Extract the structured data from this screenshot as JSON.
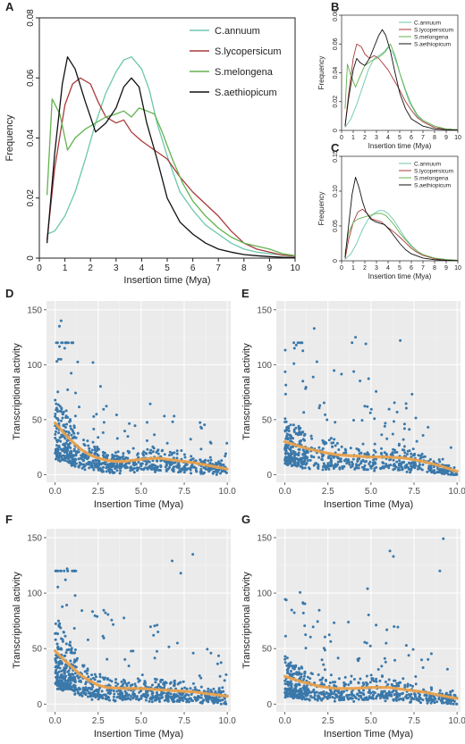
{
  "colors": {
    "C.annuum": "#6cc7ad",
    "S.lycopersicum": "#a83a3a",
    "S.melongena": "#63b24f",
    "S.aethiopicum": "#111111",
    "points": "#3a78aa",
    "trend": "#e8a04c",
    "panel_bg": "#ebebeb"
  },
  "chart_data": [
    {
      "panel": "A",
      "type": "line",
      "xlabel": "Insertion time (Mya)",
      "ylabel": "Frequency",
      "xlim": [
        0,
        10
      ],
      "ylim": [
        0,
        0.08
      ],
      "xticks": [
        0,
        1,
        2,
        3,
        4,
        5,
        6,
        7,
        8,
        9,
        10
      ],
      "yticks": [
        0,
        0.02,
        0.04,
        0.06,
        0.08
      ],
      "ytick_labels": [
        "0",
        "0.02",
        "0.04",
        "0.06",
        "0.08"
      ],
      "legend": "top-right",
      "series": [
        {
          "name": "C.annuum",
          "x": [
            0.3,
            0.6,
            1,
            1.4,
            1.8,
            2.2,
            2.6,
            3,
            3.3,
            3.6,
            4,
            4.3,
            4.6,
            5,
            5.5,
            6,
            6.5,
            7,
            7.5,
            8,
            8.5,
            9,
            9.5,
            10
          ],
          "values": [
            0.008,
            0.009,
            0.014,
            0.022,
            0.033,
            0.045,
            0.055,
            0.062,
            0.066,
            0.067,
            0.063,
            0.056,
            0.045,
            0.034,
            0.022,
            0.016,
            0.011,
            0.008,
            0.005,
            0.003,
            0.002,
            0.0015,
            0.001,
            0.0008
          ]
        },
        {
          "name": "S.lycopersicum",
          "x": [
            0.3,
            0.6,
            1,
            1.3,
            1.6,
            2,
            2.3,
            2.6,
            3,
            3.3,
            3.6,
            4,
            4.5,
            5,
            5.5,
            6,
            6.5,
            7,
            7.5,
            8,
            8.5,
            9,
            9.5,
            10
          ],
          "values": [
            0.006,
            0.03,
            0.051,
            0.058,
            0.06,
            0.058,
            0.052,
            0.047,
            0.045,
            0.046,
            0.042,
            0.039,
            0.036,
            0.033,
            0.027,
            0.022,
            0.018,
            0.014,
            0.009,
            0.005,
            0.003,
            0.002,
            0.001,
            0.0007
          ]
        },
        {
          "name": "S.melongena",
          "x": [
            0.3,
            0.5,
            0.8,
            1.1,
            1.4,
            1.8,
            2.2,
            2.6,
            3,
            3.3,
            3.6,
            3.9,
            4.2,
            4.5,
            4.8,
            5.2,
            5.6,
            6,
            6.5,
            7,
            7.5,
            8,
            8.5,
            9,
            9.5,
            10
          ],
          "values": [
            0.021,
            0.053,
            0.048,
            0.036,
            0.04,
            0.043,
            0.045,
            0.047,
            0.048,
            0.049,
            0.047,
            0.05,
            0.049,
            0.048,
            0.042,
            0.033,
            0.025,
            0.019,
            0.014,
            0.01,
            0.007,
            0.005,
            0.004,
            0.003,
            0.0015,
            0.0008
          ]
        },
        {
          "name": "S.aethiopicum",
          "x": [
            0.3,
            0.6,
            0.9,
            1.1,
            1.4,
            1.8,
            2.2,
            2.6,
            3,
            3.3,
            3.6,
            3.9,
            4.2,
            4.6,
            5,
            5.5,
            6,
            6.5,
            7,
            7.5,
            8,
            8.5,
            9,
            9.5,
            10
          ],
          "values": [
            0.005,
            0.035,
            0.058,
            0.067,
            0.063,
            0.052,
            0.042,
            0.045,
            0.05,
            0.057,
            0.06,
            0.057,
            0.045,
            0.033,
            0.02,
            0.012,
            0.008,
            0.005,
            0.003,
            0.002,
            0.0012,
            0.0008,
            0.0005,
            0.0003,
            0.0002
          ]
        }
      ]
    },
    {
      "panel": "B",
      "type": "line",
      "xlabel": "Insertion time (Mya)",
      "ylabel": "Frequency",
      "xlim": [
        0,
        10
      ],
      "ylim": [
        0,
        0.08
      ],
      "xticks": [
        0,
        1,
        2,
        3,
        4,
        5,
        6,
        7,
        8,
        9,
        10
      ],
      "yticks": [
        0,
        0.02,
        0.04,
        0.06,
        0.08
      ],
      "ytick_labels": [
        "0",
        "0.02",
        "0.04",
        "0.06",
        "0.08"
      ],
      "legend": "top-right",
      "series": [
        {
          "name": "C.annuum",
          "x": [
            0.3,
            0.8,
            1.3,
            1.8,
            2.3,
            2.8,
            3.2,
            3.6,
            4,
            4.4,
            4.8,
            5.3,
            5.8,
            6.5,
            7,
            8,
            9,
            10
          ],
          "values": [
            0.002,
            0.008,
            0.018,
            0.03,
            0.042,
            0.05,
            0.052,
            0.054,
            0.058,
            0.054,
            0.045,
            0.032,
            0.02,
            0.01,
            0.006,
            0.002,
            0.001,
            0.0005
          ]
        },
        {
          "name": "S.lycopersicum",
          "x": [
            0.3,
            0.6,
            1,
            1.3,
            1.7,
            2,
            2.4,
            2.8,
            3.2,
            3.6,
            4,
            4.5,
            5,
            5.5,
            6,
            6.5,
            7,
            8,
            9,
            10
          ],
          "values": [
            0.003,
            0.025,
            0.05,
            0.06,
            0.058,
            0.053,
            0.05,
            0.052,
            0.05,
            0.046,
            0.042,
            0.035,
            0.028,
            0.02,
            0.014,
            0.009,
            0.006,
            0.002,
            0.001,
            0.0005
          ]
        },
        {
          "name": "S.melongena",
          "x": [
            0.3,
            0.5,
            0.8,
            1.2,
            1.6,
            2,
            2.5,
            3,
            3.4,
            3.8,
            4.2,
            4.6,
            5,
            5.5,
            6,
            6.5,
            7,
            8,
            9,
            10
          ],
          "values": [
            0.015,
            0.046,
            0.038,
            0.03,
            0.038,
            0.045,
            0.048,
            0.05,
            0.052,
            0.055,
            0.06,
            0.052,
            0.04,
            0.028,
            0.018,
            0.011,
            0.007,
            0.003,
            0.001,
            0.0005
          ]
        },
        {
          "name": "S.aethiopicum",
          "x": [
            0.3,
            0.6,
            1,
            1.3,
            1.6,
            2,
            2.4,
            2.8,
            3.2,
            3.5,
            3.8,
            4.2,
            4.6,
            5,
            5.5,
            6,
            7,
            8,
            9,
            10
          ],
          "values": [
            0.003,
            0.022,
            0.042,
            0.05,
            0.047,
            0.045,
            0.05,
            0.058,
            0.066,
            0.07,
            0.066,
            0.055,
            0.04,
            0.026,
            0.015,
            0.008,
            0.003,
            0.001,
            0.0005,
            0.0002
          ]
        }
      ]
    },
    {
      "panel": "C",
      "type": "line",
      "xlabel": "Insertion time (Mya)",
      "ylabel": "Frequency",
      "xlim": [
        0,
        10
      ],
      "ylim": [
        0,
        0.15
      ],
      "xticks": [
        0,
        1,
        2,
        3,
        4,
        5,
        6,
        7,
        8,
        9,
        10
      ],
      "yticks": [
        0,
        0.05,
        0.1,
        0.15
      ],
      "ytick_labels": [
        "0",
        "0.05",
        "0.10",
        "0.15"
      ],
      "legend": "top-right",
      "series": [
        {
          "name": "C.annuum",
          "x": [
            0.3,
            0.8,
            1.3,
            1.8,
            2.3,
            2.8,
            3.2,
            3.6,
            4,
            4.5,
            5,
            5.5,
            6,
            6.5,
            7,
            8,
            9,
            10
          ],
          "values": [
            0.002,
            0.01,
            0.025,
            0.045,
            0.06,
            0.068,
            0.072,
            0.072,
            0.068,
            0.058,
            0.045,
            0.032,
            0.022,
            0.014,
            0.008,
            0.003,
            0.001,
            0.0005
          ]
        },
        {
          "name": "S.lycopersicum",
          "x": [
            0.3,
            0.6,
            1,
            1.4,
            1.8,
            2.2,
            2.6,
            3,
            3.4,
            3.8,
            4.2,
            4.6,
            5,
            5.5,
            6,
            6.5,
            7,
            8,
            9,
            10
          ],
          "values": [
            0.003,
            0.03,
            0.055,
            0.07,
            0.074,
            0.068,
            0.06,
            0.058,
            0.056,
            0.05,
            0.045,
            0.04,
            0.034,
            0.026,
            0.018,
            0.012,
            0.008,
            0.003,
            0.001,
            0.0005
          ]
        },
        {
          "name": "S.melongena",
          "x": [
            0.3,
            0.6,
            1,
            1.4,
            1.8,
            2.2,
            2.6,
            3,
            3.4,
            3.8,
            4.2,
            4.6,
            5,
            5.5,
            6,
            6.5,
            7,
            8,
            9,
            10
          ],
          "values": [
            0.01,
            0.04,
            0.055,
            0.06,
            0.062,
            0.064,
            0.066,
            0.068,
            0.068,
            0.065,
            0.058,
            0.05,
            0.04,
            0.03,
            0.021,
            0.014,
            0.009,
            0.004,
            0.002,
            0.0008
          ]
        },
        {
          "name": "S.aethiopicum",
          "x": [
            0.3,
            0.6,
            0.9,
            1.2,
            1.5,
            1.8,
            2.1,
            2.5,
            2.9,
            3.3,
            3.7,
            4.1,
            4.5,
            5,
            5.5,
            6,
            7,
            8,
            9,
            10
          ],
          "values": [
            0.005,
            0.05,
            0.095,
            0.12,
            0.105,
            0.085,
            0.07,
            0.06,
            0.056,
            0.054,
            0.052,
            0.045,
            0.036,
            0.025,
            0.016,
            0.01,
            0.004,
            0.0015,
            0.0006,
            0.0002
          ]
        }
      ]
    },
    {
      "panel": "D",
      "type": "scatter",
      "xlabel": "Insertion Time (Mya)",
      "ylabel": "Transcriptional activity",
      "xlim": [
        -0.5,
        10.2
      ],
      "ylim": [
        -7,
        158
      ],
      "xticks": [
        0,
        2.5,
        5,
        7.5,
        10
      ],
      "xtick_labels": [
        "0.0",
        "2.5",
        "5.0",
        "7.5",
        "10.0"
      ],
      "yticks": [
        0,
        50,
        100,
        150
      ],
      "point_count": 800,
      "trend": {
        "x": [
          0,
          0.5,
          1,
          1.5,
          2,
          2.5,
          3,
          3.5,
          4,
          5,
          6,
          7,
          8,
          9,
          10
        ],
        "y": [
          47,
          38,
          30,
          23,
          18,
          15,
          13,
          12,
          12,
          14,
          15,
          13,
          11,
          8,
          5
        ]
      },
      "notable_points": [
        {
          "x": 0.2,
          "y": 105
        },
        {
          "x": 0.35,
          "y": 140
        },
        {
          "x": 0.25,
          "y": 135
        },
        {
          "x": 2.2,
          "y": 102
        },
        {
          "x": 0.1,
          "y": 103
        }
      ]
    },
    {
      "panel": "E",
      "type": "scatter",
      "xlabel": "Insertion Time (Mya)",
      "ylabel": "Transcriptional activity",
      "xlim": [
        -0.5,
        10.2
      ],
      "ylim": [
        -7,
        158
      ],
      "xticks": [
        0,
        2.5,
        5,
        7.5,
        10
      ],
      "xtick_labels": [
        "0.0",
        "2.5",
        "5.0",
        "7.5",
        "10.0"
      ],
      "yticks": [
        0,
        50,
        100,
        150
      ],
      "point_count": 700,
      "trend": {
        "x": [
          0,
          1,
          2,
          3,
          4,
          5,
          6,
          7,
          8,
          9,
          10
        ],
        "y": [
          30,
          25,
          21,
          18,
          17,
          16,
          16,
          15,
          12,
          8,
          3
        ]
      },
      "notable_points": [
        {
          "x": 1.7,
          "y": 133
        },
        {
          "x": 4.1,
          "y": 125
        },
        {
          "x": 4.7,
          "y": 119
        },
        {
          "x": 3.9,
          "y": 120
        },
        {
          "x": 6.7,
          "y": 122
        }
      ]
    },
    {
      "panel": "F",
      "type": "scatter",
      "xlabel": "Insertion Time (Mya)",
      "ylabel": "Transcriptional activity",
      "xlim": [
        -0.5,
        10.2
      ],
      "ylim": [
        -7,
        158
      ],
      "xticks": [
        0,
        2.5,
        5,
        7.5,
        10
      ],
      "xtick_labels": [
        "0.0",
        "2.5",
        "5.0",
        "7.5",
        "10.0"
      ],
      "yticks": [
        0,
        50,
        100,
        150
      ],
      "point_count": 850,
      "trend": {
        "x": [
          0,
          0.5,
          1,
          1.5,
          2,
          2.5,
          3,
          4,
          5,
          6,
          7,
          8,
          9,
          10
        ],
        "y": [
          48,
          40,
          33,
          26,
          21,
          17,
          15,
          14,
          14,
          13,
          12,
          11,
          9,
          7
        ]
      },
      "notable_points": [
        {
          "x": 0.7,
          "y": 122
        },
        {
          "x": 8.0,
          "y": 135
        },
        {
          "x": 6.8,
          "y": 129
        },
        {
          "x": 7.3,
          "y": 118
        },
        {
          "x": 0.6,
          "y": 112
        }
      ]
    },
    {
      "panel": "G",
      "type": "scatter",
      "xlabel": "Insertion Time (Mya)",
      "ylabel": "Transcriptional activity",
      "xlim": [
        -0.5,
        10.2
      ],
      "ylim": [
        -7,
        158
      ],
      "xticks": [
        0,
        2.5,
        5,
        7.5,
        10
      ],
      "xtick_labels": [
        "0.0",
        "2.5",
        "5.0",
        "7.5",
        "10.0"
      ],
      "yticks": [
        0,
        50,
        100,
        150
      ],
      "point_count": 700,
      "trend": {
        "x": [
          0,
          1,
          2,
          3,
          4,
          5,
          6,
          7,
          8,
          9,
          10
        ],
        "y": [
          25,
          20,
          16,
          14,
          14,
          15,
          15,
          13,
          11,
          8,
          5
        ]
      },
      "notable_points": [
        {
          "x": 9.2,
          "y": 149
        },
        {
          "x": 6.1,
          "y": 138
        },
        {
          "x": 6.3,
          "y": 133
        },
        {
          "x": 9.0,
          "y": 120
        },
        {
          "x": 4.8,
          "y": 104
        }
      ]
    }
  ]
}
